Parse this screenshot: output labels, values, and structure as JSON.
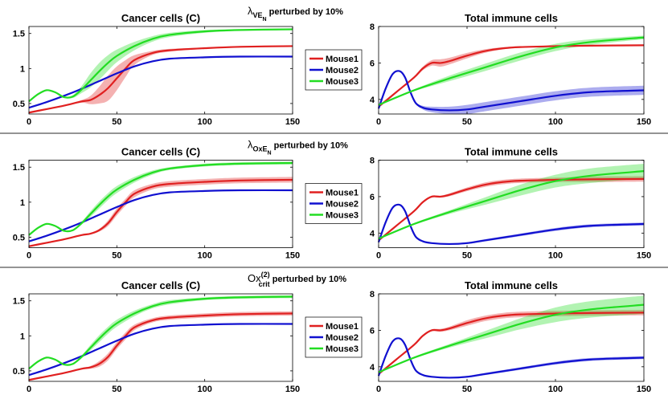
{
  "colors": {
    "mouse1": "#e02020",
    "mouse2": "#1010d0",
    "mouse3": "#22dd22",
    "separator": "#555555"
  },
  "chart_data": [
    {
      "row_title": {
        "symbol": "λ",
        "sub": "VE",
        "subsub": "N",
        "suffix": " perturbed by 10%"
      },
      "legend": [
        "Mouse1",
        "Mouse2",
        "Mouse3"
      ],
      "left": {
        "type": "line",
        "title": "Cancer cells (C)",
        "xlim": [
          0,
          150
        ],
        "ylim": [
          0.35,
          1.6
        ],
        "xticks": [
          0,
          50,
          100,
          150
        ],
        "yticks": [
          0.5,
          1,
          1.5
        ],
        "series": [
          {
            "name": "Mouse1",
            "x": [
              0,
              10,
              20,
              30,
              35,
              40,
              45,
              50,
              55,
              60,
              70,
              80,
              100,
              120,
              150
            ],
            "y": [
              0.37,
              0.42,
              0.47,
              0.53,
              0.55,
              0.62,
              0.72,
              0.86,
              1.0,
              1.12,
              1.22,
              1.26,
              1.29,
              1.31,
              1.32
            ],
            "band": [
              0,
              0,
              0,
              0.02,
              0.06,
              0.12,
              0.18,
              0.17,
              0.12,
              0.07,
              0.03,
              0.02,
              0.01,
              0.01,
              0.01
            ]
          },
          {
            "name": "Mouse2",
            "x": [
              0,
              10,
              20,
              30,
              40,
              50,
              60,
              70,
              80,
              100,
              120,
              150
            ],
            "y": [
              0.44,
              0.52,
              0.61,
              0.71,
              0.82,
              0.93,
              1.03,
              1.1,
              1.14,
              1.16,
              1.17,
              1.17
            ],
            "band": [
              0,
              0,
              0,
              0,
              0,
              0,
              0,
              0,
              0,
              0,
              0,
              0
            ]
          },
          {
            "name": "Mouse3",
            "x": [
              0,
              5,
              10,
              15,
              20,
              25,
              30,
              35,
              40,
              45,
              50,
              60,
              70,
              80,
              100,
              120,
              150
            ],
            "y": [
              0.53,
              0.63,
              0.69,
              0.66,
              0.59,
              0.6,
              0.7,
              0.83,
              0.96,
              1.08,
              1.18,
              1.32,
              1.42,
              1.48,
              1.53,
              1.55,
              1.56
            ],
            "band": [
              0,
              0,
              0,
              0,
              0,
              0.02,
              0.05,
              0.1,
              0.12,
              0.11,
              0.09,
              0.06,
              0.04,
              0.03,
              0.02,
              0.01,
              0.01
            ]
          }
        ]
      },
      "right": {
        "type": "line",
        "title": "Total immune cells",
        "xlim": [
          0,
          150
        ],
        "ylim": [
          3.2,
          8
        ],
        "xticks": [
          0,
          50,
          100,
          150
        ],
        "yticks": [
          4,
          6,
          8
        ],
        "series": [
          {
            "name": "Mouse1",
            "x": [
              0,
              10,
              20,
              25,
              30,
              35,
              40,
              50,
              60,
              70,
              80,
              100,
              120,
              150
            ],
            "y": [
              3.6,
              4.4,
              5.2,
              5.7,
              6.0,
              6.0,
              6.1,
              6.4,
              6.65,
              6.8,
              6.87,
              6.92,
              6.95,
              6.97
            ],
            "band": [
              0,
              0,
              0.05,
              0.1,
              0.15,
              0.2,
              0.18,
              0.15,
              0.1,
              0.06,
              0.04,
              0.02,
              0.02,
              0.02
            ]
          },
          {
            "name": "Mouse2",
            "x": [
              0,
              4,
              8,
              12,
              15,
              18,
              21,
              25,
              30,
              40,
              50,
              60,
              80,
              100,
              120,
              150
            ],
            "y": [
              3.5,
              4.6,
              5.4,
              5.55,
              5.2,
              4.4,
              3.8,
              3.55,
              3.45,
              3.4,
              3.45,
              3.6,
              3.9,
              4.2,
              4.4,
              4.5
            ],
            "band": [
              0,
              0,
              0,
              0,
              0,
              0,
              0.05,
              0.1,
              0.15,
              0.2,
              0.25,
              0.25,
              0.25,
              0.25,
              0.25,
              0.25
            ]
          },
          {
            "name": "Mouse3",
            "x": [
              0,
              20,
              40,
              60,
              80,
              100,
              120,
              150
            ],
            "y": [
              3.7,
              4.5,
              5.15,
              5.75,
              6.35,
              6.85,
              7.15,
              7.4
            ],
            "band": [
              0,
              0.05,
              0.15,
              0.2,
              0.22,
              0.2,
              0.15,
              0.1
            ]
          }
        ]
      }
    },
    {
      "row_title": {
        "symbol": "λ",
        "sub": "OxE",
        "subsub": "N",
        "suffix": " perturbed by 10%"
      },
      "legend": [
        "Mouse1",
        "Mouse2",
        "Mouse3"
      ],
      "left": {
        "type": "line",
        "title": "Cancer cells (C)",
        "xlim": [
          0,
          150
        ],
        "ylim": [
          0.35,
          1.6
        ],
        "xticks": [
          0,
          50,
          100,
          150
        ],
        "yticks": [
          0.5,
          1,
          1.5
        ],
        "series": [
          {
            "name": "Mouse1",
            "x": [
              0,
              10,
              20,
              30,
              35,
              40,
              45,
              50,
              55,
              60,
              70,
              80,
              100,
              120,
              150
            ],
            "y": [
              0.37,
              0.42,
              0.47,
              0.53,
              0.55,
              0.6,
              0.7,
              0.86,
              1.0,
              1.12,
              1.22,
              1.26,
              1.29,
              1.31,
              1.32
            ],
            "band": [
              0,
              0,
              0,
              0,
              0.01,
              0.02,
              0.04,
              0.05,
              0.05,
              0.05,
              0.04,
              0.04,
              0.04,
              0.04,
              0.04
            ]
          },
          {
            "name": "Mouse2",
            "x": [
              0,
              10,
              20,
              30,
              40,
              50,
              60,
              70,
              80,
              100,
              120,
              150
            ],
            "y": [
              0.44,
              0.52,
              0.61,
              0.71,
              0.82,
              0.93,
              1.03,
              1.1,
              1.14,
              1.16,
              1.17,
              1.17
            ],
            "band": [
              0,
              0,
              0,
              0,
              0,
              0,
              0,
              0,
              0,
              0,
              0,
              0
            ]
          },
          {
            "name": "Mouse3",
            "x": [
              0,
              5,
              10,
              15,
              20,
              25,
              30,
              35,
              40,
              45,
              50,
              60,
              70,
              80,
              100,
              120,
              150
            ],
            "y": [
              0.53,
              0.63,
              0.69,
              0.66,
              0.59,
              0.6,
              0.7,
              0.83,
              0.96,
              1.08,
              1.18,
              1.32,
              1.42,
              1.48,
              1.53,
              1.55,
              1.56
            ],
            "band": [
              0,
              0,
              0,
              0,
              0,
              0,
              0.02,
              0.04,
              0.05,
              0.05,
              0.05,
              0.04,
              0.03,
              0.02,
              0.02,
              0.02,
              0.02
            ]
          }
        ]
      },
      "right": {
        "type": "line",
        "title": "Total immune cells",
        "xlim": [
          0,
          150
        ],
        "ylim": [
          3.2,
          8
        ],
        "xticks": [
          0,
          50,
          100,
          150
        ],
        "yticks": [
          4,
          6,
          8
        ],
        "series": [
          {
            "name": "Mouse1",
            "x": [
              0,
              10,
              20,
              25,
              30,
              35,
              40,
              50,
              60,
              70,
              80,
              100,
              120,
              150
            ],
            "y": [
              3.6,
              4.4,
              5.2,
              5.7,
              6.0,
              6.0,
              6.1,
              6.4,
              6.65,
              6.8,
              6.87,
              6.92,
              6.95,
              6.97
            ],
            "band": [
              0,
              0,
              0.03,
              0.05,
              0.05,
              0.05,
              0.08,
              0.1,
              0.12,
              0.12,
              0.12,
              0.12,
              0.15,
              0.15
            ]
          },
          {
            "name": "Mouse2",
            "x": [
              0,
              4,
              8,
              12,
              15,
              18,
              21,
              25,
              30,
              40,
              50,
              60,
              80,
              100,
              120,
              150
            ],
            "y": [
              3.5,
              4.6,
              5.4,
              5.55,
              5.2,
              4.4,
              3.8,
              3.55,
              3.45,
              3.4,
              3.45,
              3.6,
              3.9,
              4.2,
              4.4,
              4.5
            ],
            "band": [
              0,
              0,
              0,
              0,
              0,
              0,
              0,
              0.02,
              0.03,
              0.04,
              0.05,
              0.06,
              0.07,
              0.08,
              0.08,
              0.08
            ]
          },
          {
            "name": "Mouse3",
            "x": [
              0,
              20,
              40,
              60,
              80,
              100,
              120,
              150
            ],
            "y": [
              3.7,
              4.5,
              5.15,
              5.75,
              6.35,
              6.85,
              7.15,
              7.4
            ],
            "band": [
              0,
              0.05,
              0.1,
              0.2,
              0.3,
              0.35,
              0.4,
              0.4
            ]
          }
        ]
      }
    },
    {
      "row_title": {
        "symbol": "Ox",
        "sup": "(2)",
        "sub": "crit",
        "suffix": " perturbed by 10%"
      },
      "legend": [
        "Mouse1",
        "Mouse2",
        "Mouse3"
      ],
      "left": {
        "type": "line",
        "title": "Cancer cells (C)",
        "xlim": [
          0,
          150
        ],
        "ylim": [
          0.35,
          1.6
        ],
        "xticks": [
          0,
          50,
          100,
          150
        ],
        "yticks": [
          0.5,
          1,
          1.5
        ],
        "series": [
          {
            "name": "Mouse1",
            "x": [
              0,
              10,
              20,
              30,
              35,
              40,
              45,
              50,
              55,
              60,
              70,
              80,
              100,
              120,
              150
            ],
            "y": [
              0.37,
              0.42,
              0.47,
              0.53,
              0.55,
              0.6,
              0.7,
              0.86,
              1.0,
              1.12,
              1.22,
              1.26,
              1.29,
              1.31,
              1.32
            ],
            "band": [
              0,
              0,
              0,
              0.01,
              0.02,
              0.04,
              0.05,
              0.05,
              0.05,
              0.04,
              0.03,
              0.03,
              0.03,
              0.03,
              0.03
            ]
          },
          {
            "name": "Mouse2",
            "x": [
              0,
              10,
              20,
              30,
              40,
              50,
              60,
              70,
              80,
              100,
              120,
              150
            ],
            "y": [
              0.44,
              0.52,
              0.61,
              0.71,
              0.82,
              0.93,
              1.03,
              1.1,
              1.14,
              1.16,
              1.17,
              1.17
            ],
            "band": [
              0,
              0,
              0,
              0,
              0,
              0,
              0,
              0,
              0,
              0,
              0,
              0
            ]
          },
          {
            "name": "Mouse3",
            "x": [
              0,
              5,
              10,
              15,
              20,
              25,
              30,
              35,
              40,
              45,
              50,
              60,
              70,
              80,
              100,
              120,
              150
            ],
            "y": [
              0.53,
              0.63,
              0.69,
              0.66,
              0.59,
              0.6,
              0.7,
              0.83,
              0.96,
              1.08,
              1.18,
              1.32,
              1.42,
              1.48,
              1.53,
              1.55,
              1.56
            ],
            "band": [
              0,
              0,
              0,
              0,
              0,
              0.01,
              0.02,
              0.04,
              0.05,
              0.05,
              0.05,
              0.04,
              0.03,
              0.03,
              0.02,
              0.02,
              0.02
            ]
          }
        ]
      },
      "right": {
        "type": "line",
        "title": "Total immune cells",
        "xlim": [
          0,
          150
        ],
        "ylim": [
          3.2,
          8
        ],
        "xticks": [
          0,
          50,
          100,
          150
        ],
        "yticks": [
          4,
          6,
          8
        ],
        "series": [
          {
            "name": "Mouse1",
            "x": [
              0,
              10,
              20,
              25,
              30,
              35,
              40,
              50,
              60,
              70,
              80,
              100,
              120,
              150
            ],
            "y": [
              3.6,
              4.4,
              5.2,
              5.7,
              6.0,
              6.0,
              6.1,
              6.4,
              6.65,
              6.8,
              6.87,
              6.92,
              6.95,
              6.97
            ],
            "band": [
              0,
              0,
              0.03,
              0.05,
              0.05,
              0.08,
              0.1,
              0.15,
              0.15,
              0.15,
              0.15,
              0.15,
              0.15,
              0.15
            ]
          },
          {
            "name": "Mouse2",
            "x": [
              0,
              4,
              8,
              12,
              15,
              18,
              21,
              25,
              30,
              40,
              50,
              60,
              80,
              100,
              120,
              150
            ],
            "y": [
              3.5,
              4.6,
              5.4,
              5.55,
              5.2,
              4.4,
              3.8,
              3.55,
              3.45,
              3.4,
              3.45,
              3.6,
              3.9,
              4.2,
              4.4,
              4.5
            ],
            "band": [
              0,
              0,
              0,
              0,
              0,
              0,
              0,
              0.02,
              0.03,
              0.04,
              0.05,
              0.06,
              0.07,
              0.08,
              0.08,
              0.08
            ]
          },
          {
            "name": "Mouse3",
            "x": [
              0,
              20,
              40,
              60,
              80,
              100,
              120,
              150
            ],
            "y": [
              3.7,
              4.5,
              5.15,
              5.75,
              6.35,
              6.85,
              7.15,
              7.4
            ],
            "band": [
              0,
              0.05,
              0.1,
              0.2,
              0.3,
              0.4,
              0.45,
              0.5
            ]
          }
        ]
      }
    }
  ]
}
